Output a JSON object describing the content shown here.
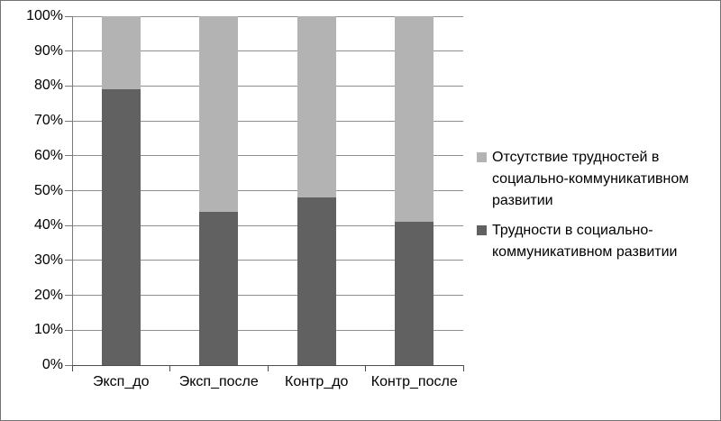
{
  "chart_data": {
    "type": "bar",
    "variant": "stacked-100",
    "title": "",
    "xlabel": "",
    "ylabel": "",
    "categories": [
      "Эксп_до",
      "Эксп_после",
      "Контр_до",
      "Контр_после"
    ],
    "series": [
      {
        "name": "Трудности в социально-коммуникативном развитии",
        "color": "#616161",
        "values": [
          79,
          44,
          48,
          41
        ]
      },
      {
        "name": "Отсутствие трудностей в социально-коммуникативном развитии",
        "color": "#b3b3b3",
        "values": [
          21,
          56,
          52,
          59
        ]
      }
    ],
    "ylim": [
      0,
      100
    ],
    "y_tick_step": 10,
    "y_ticks": [
      "0%",
      "10%",
      "20%",
      "30%",
      "40%",
      "50%",
      "60%",
      "70%",
      "80%",
      "90%",
      "100%"
    ],
    "grid": true,
    "legend_position": "right",
    "legend": [
      {
        "label": "Отсутствие трудностей в социально-коммуникативном развитии",
        "color": "#b3b3b3"
      },
      {
        "label": "Трудности в социально-коммуникативном развитии",
        "color": "#616161"
      }
    ]
  },
  "colors": {
    "background": "#ffffff",
    "figure_border": "#737373",
    "gridline": "#8f8f8f",
    "y_axis": "#7a7a7a",
    "x_axis": "#4d4d4d",
    "text": "#000000"
  }
}
